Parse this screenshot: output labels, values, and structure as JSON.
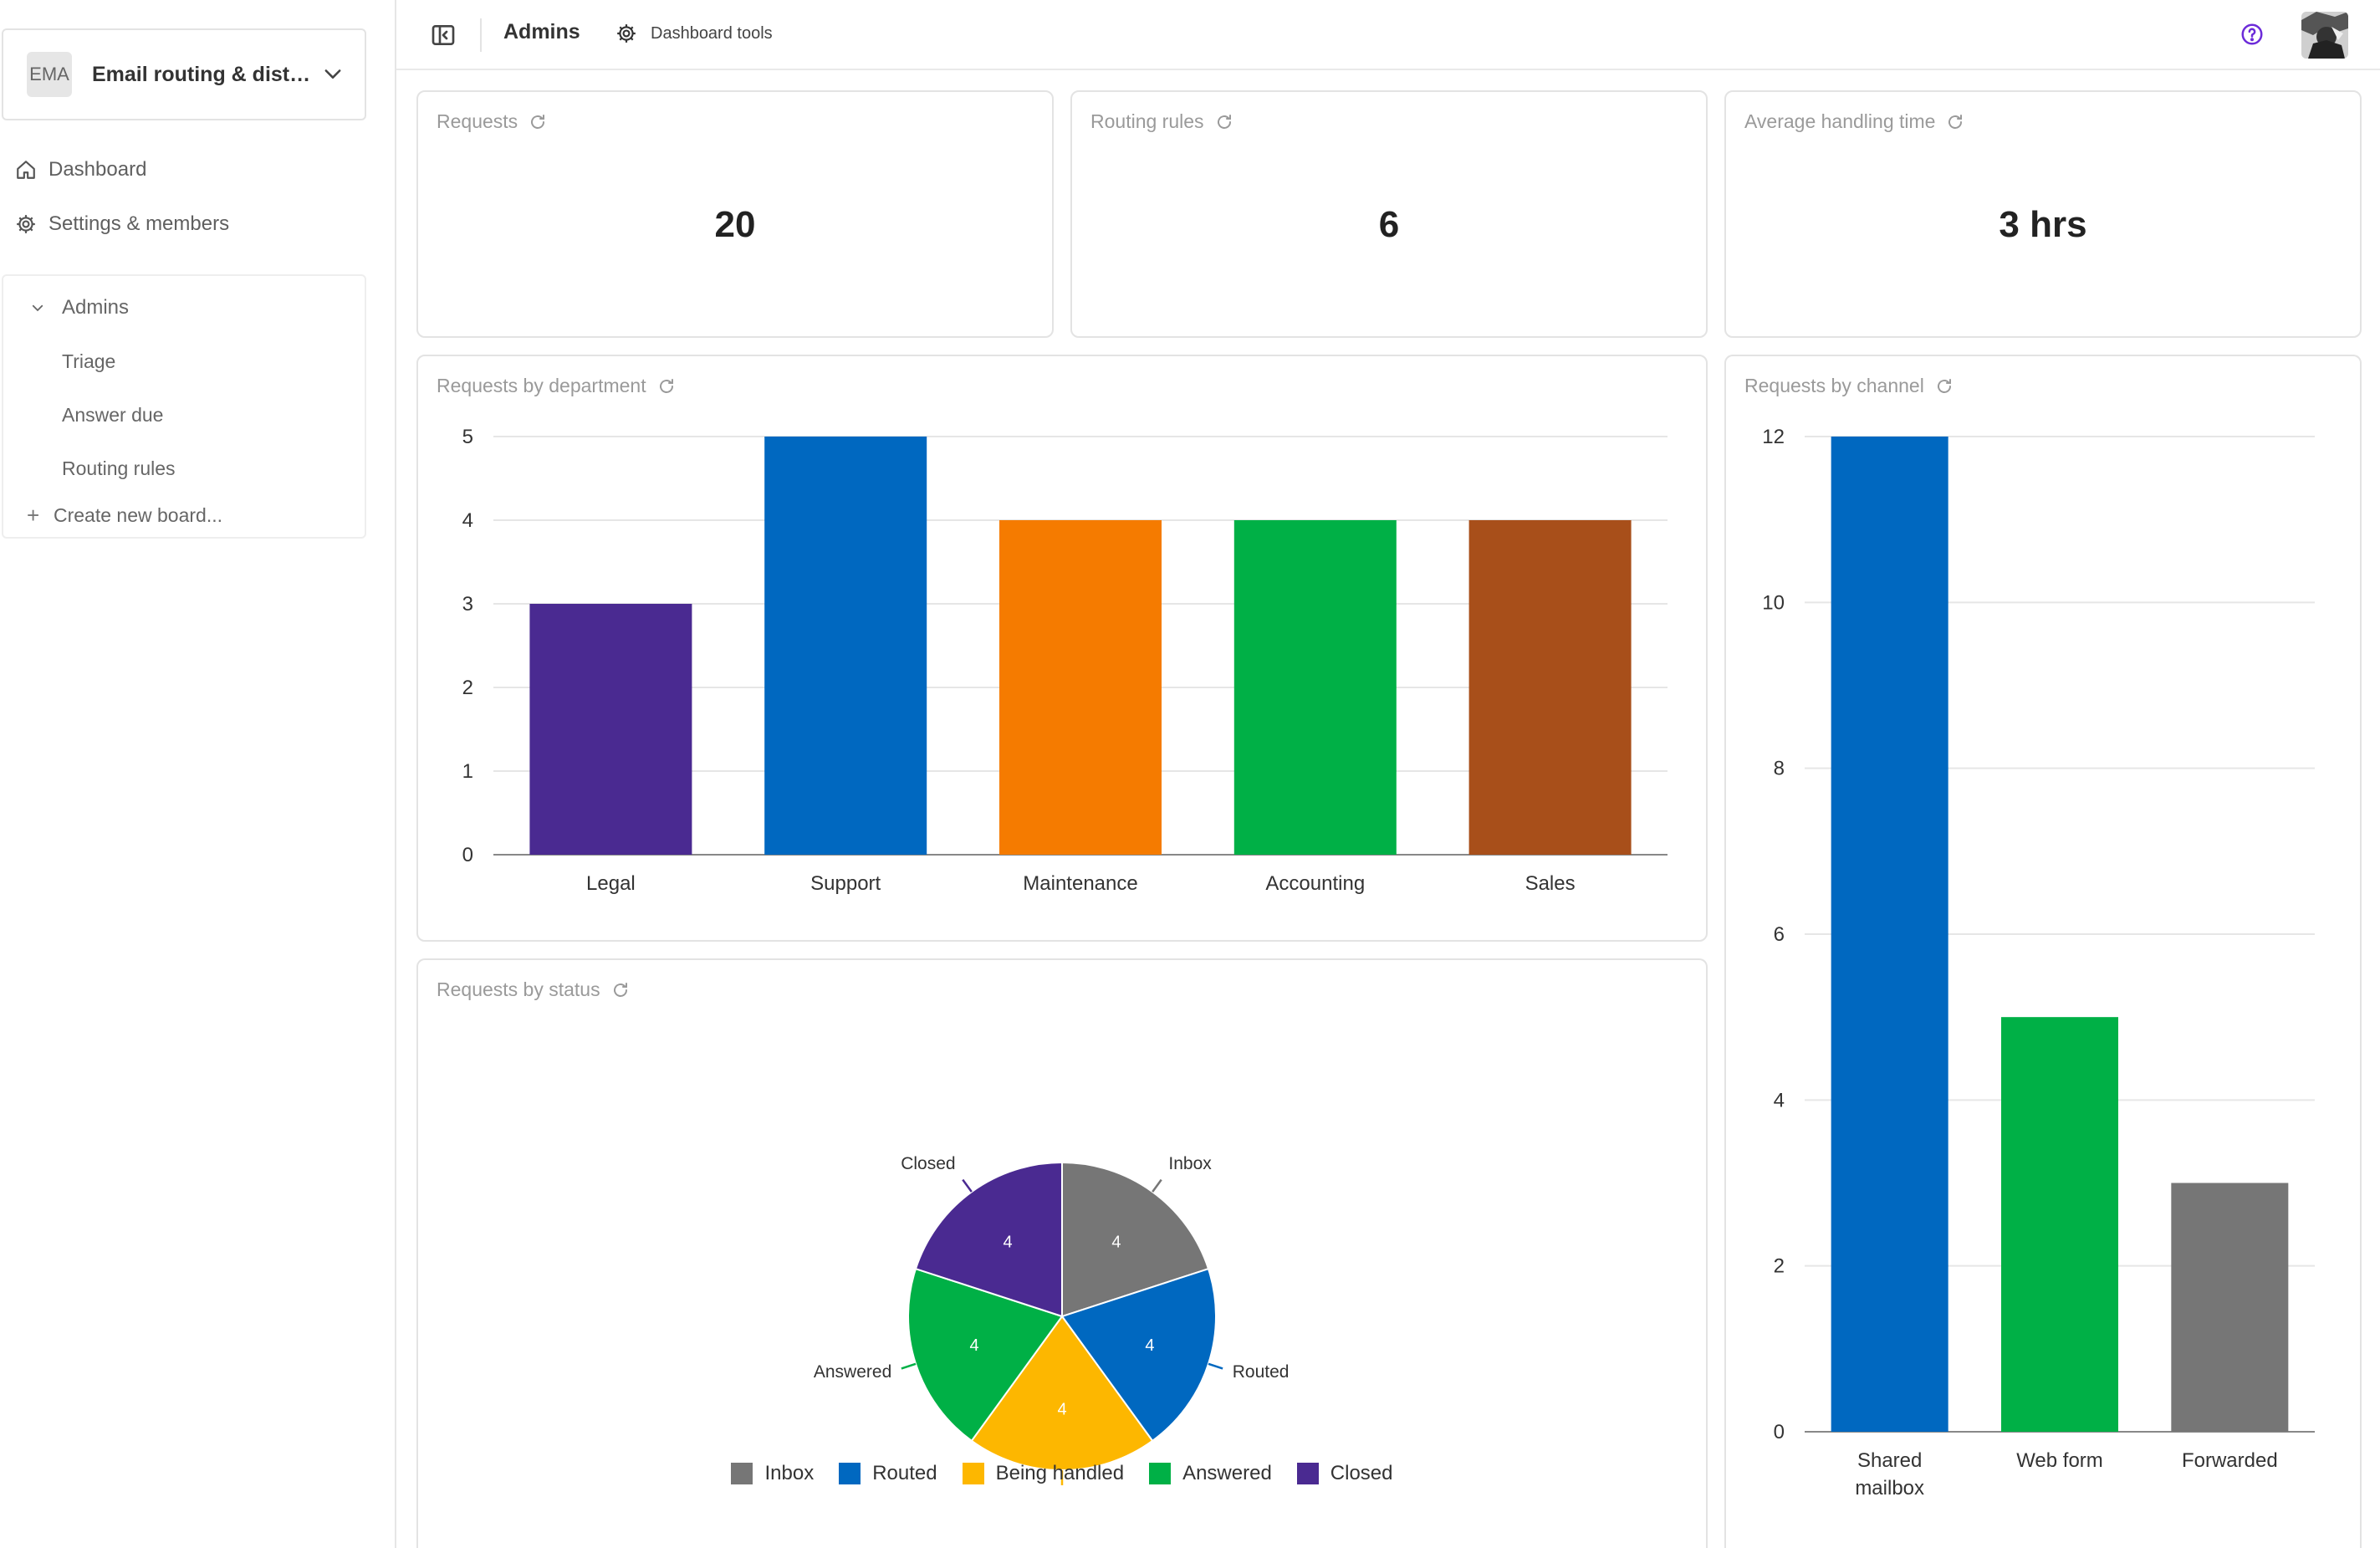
{
  "workspace": {
    "badge": "EMA",
    "name": "Email routing & distri..."
  },
  "nav": {
    "dashboard": "Dashboard",
    "settings": "Settings & members"
  },
  "boards": {
    "group_label": "Admins",
    "items": [
      "Triage",
      "Answer due",
      "Routing rules"
    ],
    "create_label": "Create new board..."
  },
  "topbar": {
    "title": "Admins",
    "tools_label": "Dashboard tools"
  },
  "kpis": [
    {
      "title": "Requests",
      "value": "20"
    },
    {
      "title": "Routing rules",
      "value": "6"
    },
    {
      "title": "Average handling time",
      "value": "3 hrs"
    }
  ],
  "colors": {
    "purple": "#4a2a91",
    "blue": "#0068c0",
    "orange": "#f57b00",
    "green": "#00b046",
    "brown": "#a84f1a",
    "gray": "#767676",
    "yellow": "#fdb700",
    "help": "#6c2bd9"
  },
  "chart_data": [
    {
      "type": "bar",
      "title": "Requests by department",
      "categories": [
        "Legal",
        "Support",
        "Maintenance",
        "Accounting",
        "Sales"
      ],
      "values": [
        3,
        5,
        4,
        4,
        4
      ],
      "bar_colors": [
        "#4a2a91",
        "#0068c0",
        "#f57b00",
        "#00b046",
        "#a84f1a"
      ],
      "yticks": [
        "0",
        "1",
        "2",
        "3",
        "4",
        "5"
      ],
      "ylim": [
        0,
        5
      ],
      "grid": true
    },
    {
      "type": "bar",
      "title": "Requests by channel",
      "categories": [
        [
          "Shared",
          "mailbox"
        ],
        [
          "Web form"
        ],
        [
          "Forwarded"
        ]
      ],
      "values": [
        12,
        5,
        3
      ],
      "bar_colors": [
        "#0068c0",
        "#00b046",
        "#767676"
      ],
      "yticks": [
        "0",
        "2",
        "4",
        "6",
        "8",
        "10",
        "12"
      ],
      "ylim": [
        0,
        12
      ],
      "grid": true
    },
    {
      "type": "pie",
      "title": "Requests by status",
      "slices": [
        {
          "label": "Inbox",
          "value": 4,
          "color": "#767676"
        },
        {
          "label": "Routed",
          "value": 4,
          "color": "#0068c0"
        },
        {
          "label": "Being handled",
          "value": 4,
          "color": "#fdb700"
        },
        {
          "label": "Answered",
          "value": 4,
          "color": "#00b046"
        },
        {
          "label": "Closed",
          "value": 4,
          "color": "#4a2a91"
        }
      ],
      "legend_position": "bottom"
    }
  ]
}
